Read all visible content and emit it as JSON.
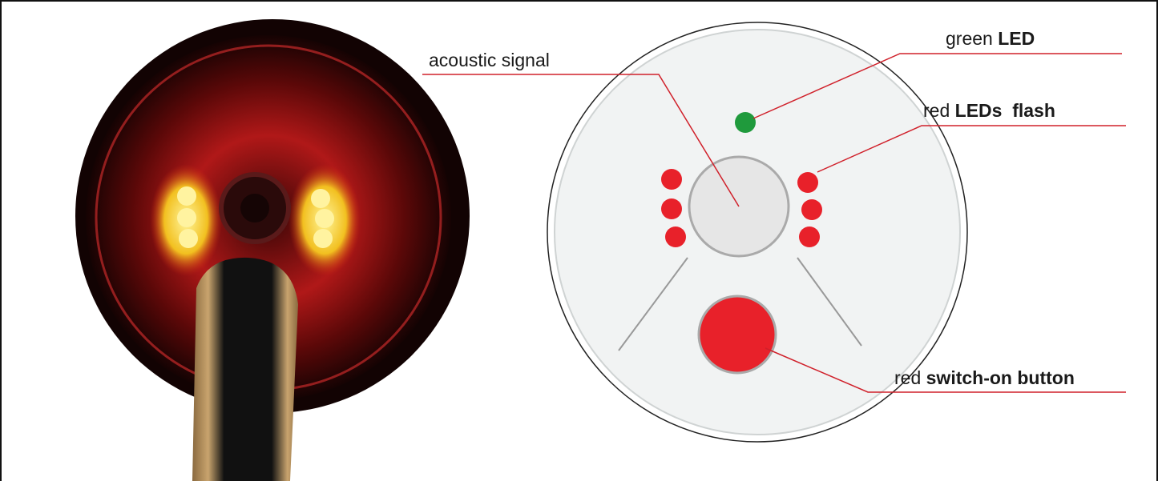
{
  "callouts": [
    {
      "prefix": "acoustic signal"
    },
    {
      "prefix": "green",
      "bold": "LED"
    },
    {
      "prefix": "red",
      "bold": "LEDs  flash"
    },
    {
      "prefix": "red",
      "bold": "switch-on button"
    }
  ]
}
